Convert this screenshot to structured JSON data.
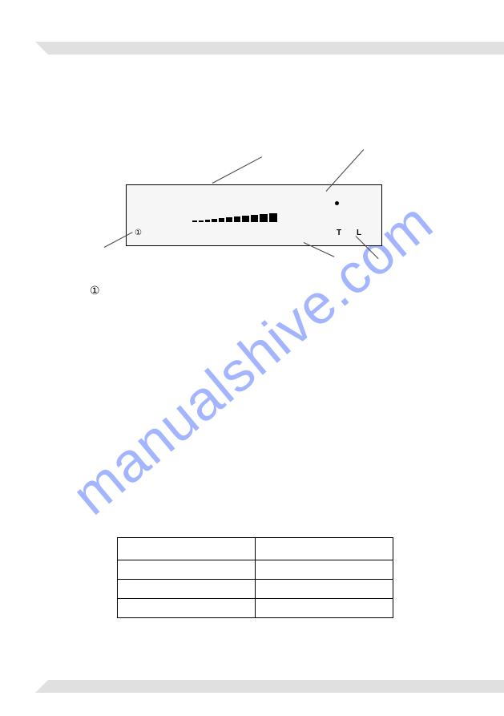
{
  "watermark": {
    "text": "manualshive.com",
    "color": "#5878ff"
  },
  "bands": {
    "color": "#e0e0e0"
  },
  "panel": {
    "border_color": "#000000",
    "background_color": "#f6f6f6",
    "labels": {
      "power": "①",
      "t": "T",
      "l": "L"
    },
    "ramp": {
      "bar_count": 11,
      "heights": [
        2,
        2,
        3,
        4,
        5,
        6,
        7,
        8,
        9,
        10,
        11
      ],
      "widths": [
        6,
        6,
        6,
        7,
        7,
        8,
        8,
        9,
        9,
        10,
        10
      ],
      "gap": 2,
      "color": "#000000"
    },
    "dot": {
      "color": "#000000",
      "size": 5
    }
  },
  "legend": {
    "glyph": "①"
  },
  "table": {
    "rows": 4,
    "columns": 2,
    "border_color": "#000000",
    "cells": [
      [
        "",
        ""
      ],
      [
        "",
        ""
      ],
      [
        "",
        ""
      ],
      [
        "",
        ""
      ]
    ]
  }
}
